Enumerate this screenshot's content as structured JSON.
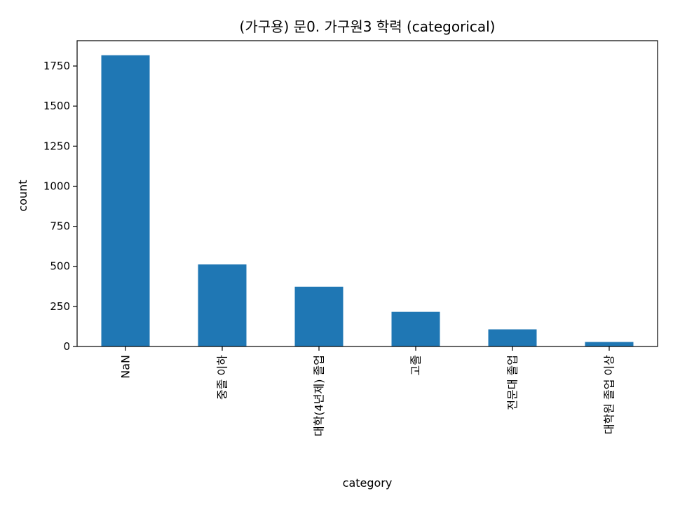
{
  "chart_data": {
    "type": "bar",
    "title": "(가구용) 문0. 가구원3 학력 (categorical)",
    "xlabel": "category",
    "ylabel": "count",
    "categories": [
      "NaN",
      "중졸 이하",
      "대학(4년제) 졸업",
      "고졸",
      "전문대 졸업",
      "대학원 졸업 이상"
    ],
    "values": [
      1817,
      512,
      373,
      216,
      107,
      28
    ],
    "ylim": [
      0,
      1908
    ],
    "yticks": [
      0,
      250,
      500,
      750,
      1000,
      1250,
      1500,
      1750
    ],
    "grid": false,
    "legend": "none",
    "bar_color": "#1f77b4"
  }
}
